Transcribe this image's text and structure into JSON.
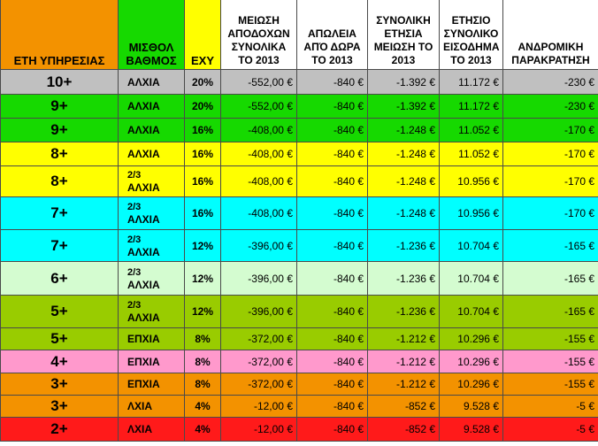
{
  "colors": {
    "header_years": "#f39200",
    "header_grade": "#16d900",
    "header_exy": "#ffff00",
    "gray": "#c0c0c0",
    "green": "#16d900",
    "yellow": "#ffff00",
    "cyan": "#00ffff",
    "light_green": "#d4fcd0",
    "olive": "#99cc00",
    "pink": "#ff99cc",
    "orange": "#f39200",
    "red": "#ff1a1a"
  },
  "header": {
    "years": "ΕΤΗ ΥΠΗΡΕΣΙΑΣ",
    "grade": "ΜΙΣΘΟΛ ΒΑΘΜΟΣ",
    "exy": "ΕΧΥ",
    "salary_cut": "ΜΕΙΩΣΗ ΑΠΟΔΟΧΩΝ ΣΥΝΟΛΙΚΑ ΤΟ 2013",
    "bonus_loss": "ΑΠΩΛΕΙΑ ΑΠΌ ΔΩΡΑ ΤΟ 2013",
    "total_cut": "ΣΥΝΟΛΙΚΗ ΕΤΗΣΙΑ ΜΕΙΩΣΗ ΤΟ 2013",
    "annual_income": "ΕΤΗΣΙΟ ΣΥΝΟΛΙΚΟ ΕΙΣΟΔΗΜΑ ΤΟ 2013",
    "withholding": "ΑΝΔΡΟΜΙΚΗ ΠΑΡΑΚΡΑΤΗΣΗ"
  },
  "rows": [
    {
      "years": "10+",
      "grade_prefix": "",
      "grade": "ΑΛΧΙΑ",
      "exy": "20%",
      "salary_cut": "-552,00 €",
      "bonus_loss": "-840 €",
      "total_cut": "-1.392 €",
      "annual_income": "11.172 €",
      "withholding": "-230 €",
      "color": "#c0c0c0"
    },
    {
      "years": "9+",
      "grade_prefix": "",
      "grade": "ΑΛΧΙΑ",
      "exy": "20%",
      "salary_cut": "-552,00 €",
      "bonus_loss": "-840 €",
      "total_cut": "-1.392 €",
      "annual_income": "11.172 €",
      "withholding": "-230 €",
      "color": "#16d900"
    },
    {
      "years": "9+",
      "grade_prefix": "",
      "grade": "ΑΛΧΙΑ",
      "exy": "16%",
      "salary_cut": "-408,00 €",
      "bonus_loss": "-840 €",
      "total_cut": "-1.248 €",
      "annual_income": "11.052 €",
      "withholding": "-170 €",
      "color": "#16d900"
    },
    {
      "years": "8+",
      "grade_prefix": "",
      "grade": "ΑΛΧΙΑ",
      "exy": "16%",
      "salary_cut": "-408,00 €",
      "bonus_loss": "-840 €",
      "total_cut": "-1.248 €",
      "annual_income": "11.052 €",
      "withholding": "-170 €",
      "color": "#ffff00"
    },
    {
      "years": "8+",
      "grade_prefix": "2/3",
      "grade": "ΑΛΧΙΑ",
      "exy": "16%",
      "salary_cut": "-408,00 €",
      "bonus_loss": "-840 €",
      "total_cut": "-1.248 €",
      "annual_income": "10.956 €",
      "withholding": "-170 €",
      "color": "#ffff00"
    },
    {
      "years": "7+",
      "grade_prefix": "2/3",
      "grade": "ΑΛΧΙΑ",
      "exy": "16%",
      "salary_cut": "-408,00 €",
      "bonus_loss": "-840 €",
      "total_cut": "-1.248 €",
      "annual_income": "10.956 €",
      "withholding": "-170 €",
      "color": "#00ffff"
    },
    {
      "years": "7+",
      "grade_prefix": "2/3",
      "grade": "ΑΛΧΙΑ",
      "exy": "12%",
      "salary_cut": "-396,00 €",
      "bonus_loss": "-840 €",
      "total_cut": "-1.236 €",
      "annual_income": "10.704 €",
      "withholding": "-165 €",
      "color": "#00ffff"
    },
    {
      "years": "6+",
      "grade_prefix": "2/3",
      "grade": "ΑΛΧΙΑ",
      "exy": "12%",
      "salary_cut": "-396,00 €",
      "bonus_loss": "-840 €",
      "total_cut": "-1.236 €",
      "annual_income": "10.704 €",
      "withholding": "-165 €",
      "color": "#d4fcd0"
    },
    {
      "years": "5+",
      "grade_prefix": "2/3",
      "grade": "ΑΛΧΙΑ",
      "exy": "12%",
      "salary_cut": "-396,00 €",
      "bonus_loss": "-840 €",
      "total_cut": "-1.236 €",
      "annual_income": "10.704 €",
      "withholding": "-165 €",
      "color": "#99cc00"
    },
    {
      "years": "5+",
      "grade_prefix": "",
      "grade": "ΕΠΧΙΑ",
      "exy": "8%",
      "salary_cut": "-372,00 €",
      "bonus_loss": "-840 €",
      "total_cut": "-1.212 €",
      "annual_income": "10.296 €",
      "withholding": "-155 €",
      "color": "#99cc00"
    },
    {
      "years": "4+",
      "grade_prefix": "",
      "grade": "ΕΠΧΙΑ",
      "exy": "8%",
      "salary_cut": "-372,00 €",
      "bonus_loss": "-840 €",
      "total_cut": "-1.212 €",
      "annual_income": "10.296 €",
      "withholding": "-155 €",
      "color": "#ff99cc"
    },
    {
      "years": "3+",
      "grade_prefix": "",
      "grade": "ΕΠΧΙΑ",
      "exy": "8%",
      "salary_cut": "-372,00 €",
      "bonus_loss": "-840 €",
      "total_cut": "-1.212 €",
      "annual_income": "10.296 €",
      "withholding": "-155 €",
      "color": "#f39200"
    },
    {
      "years": "3+",
      "grade_prefix": "",
      "grade": "ΛΧΙΑ",
      "exy": "4%",
      "salary_cut": "-12,00 €",
      "bonus_loss": "-840 €",
      "total_cut": "-852 €",
      "annual_income": "9.528 €",
      "withholding": "-5 €",
      "color": "#f39200"
    },
    {
      "years": "2+",
      "grade_prefix": "",
      "grade": "ΛΧΙΑ",
      "exy": "4%",
      "salary_cut": "-12,00 €",
      "bonus_loss": "-840 €",
      "total_cut": "-852 €",
      "annual_income": "9.528 €",
      "withholding": "-5 €",
      "color": "#ff1a1a"
    }
  ]
}
